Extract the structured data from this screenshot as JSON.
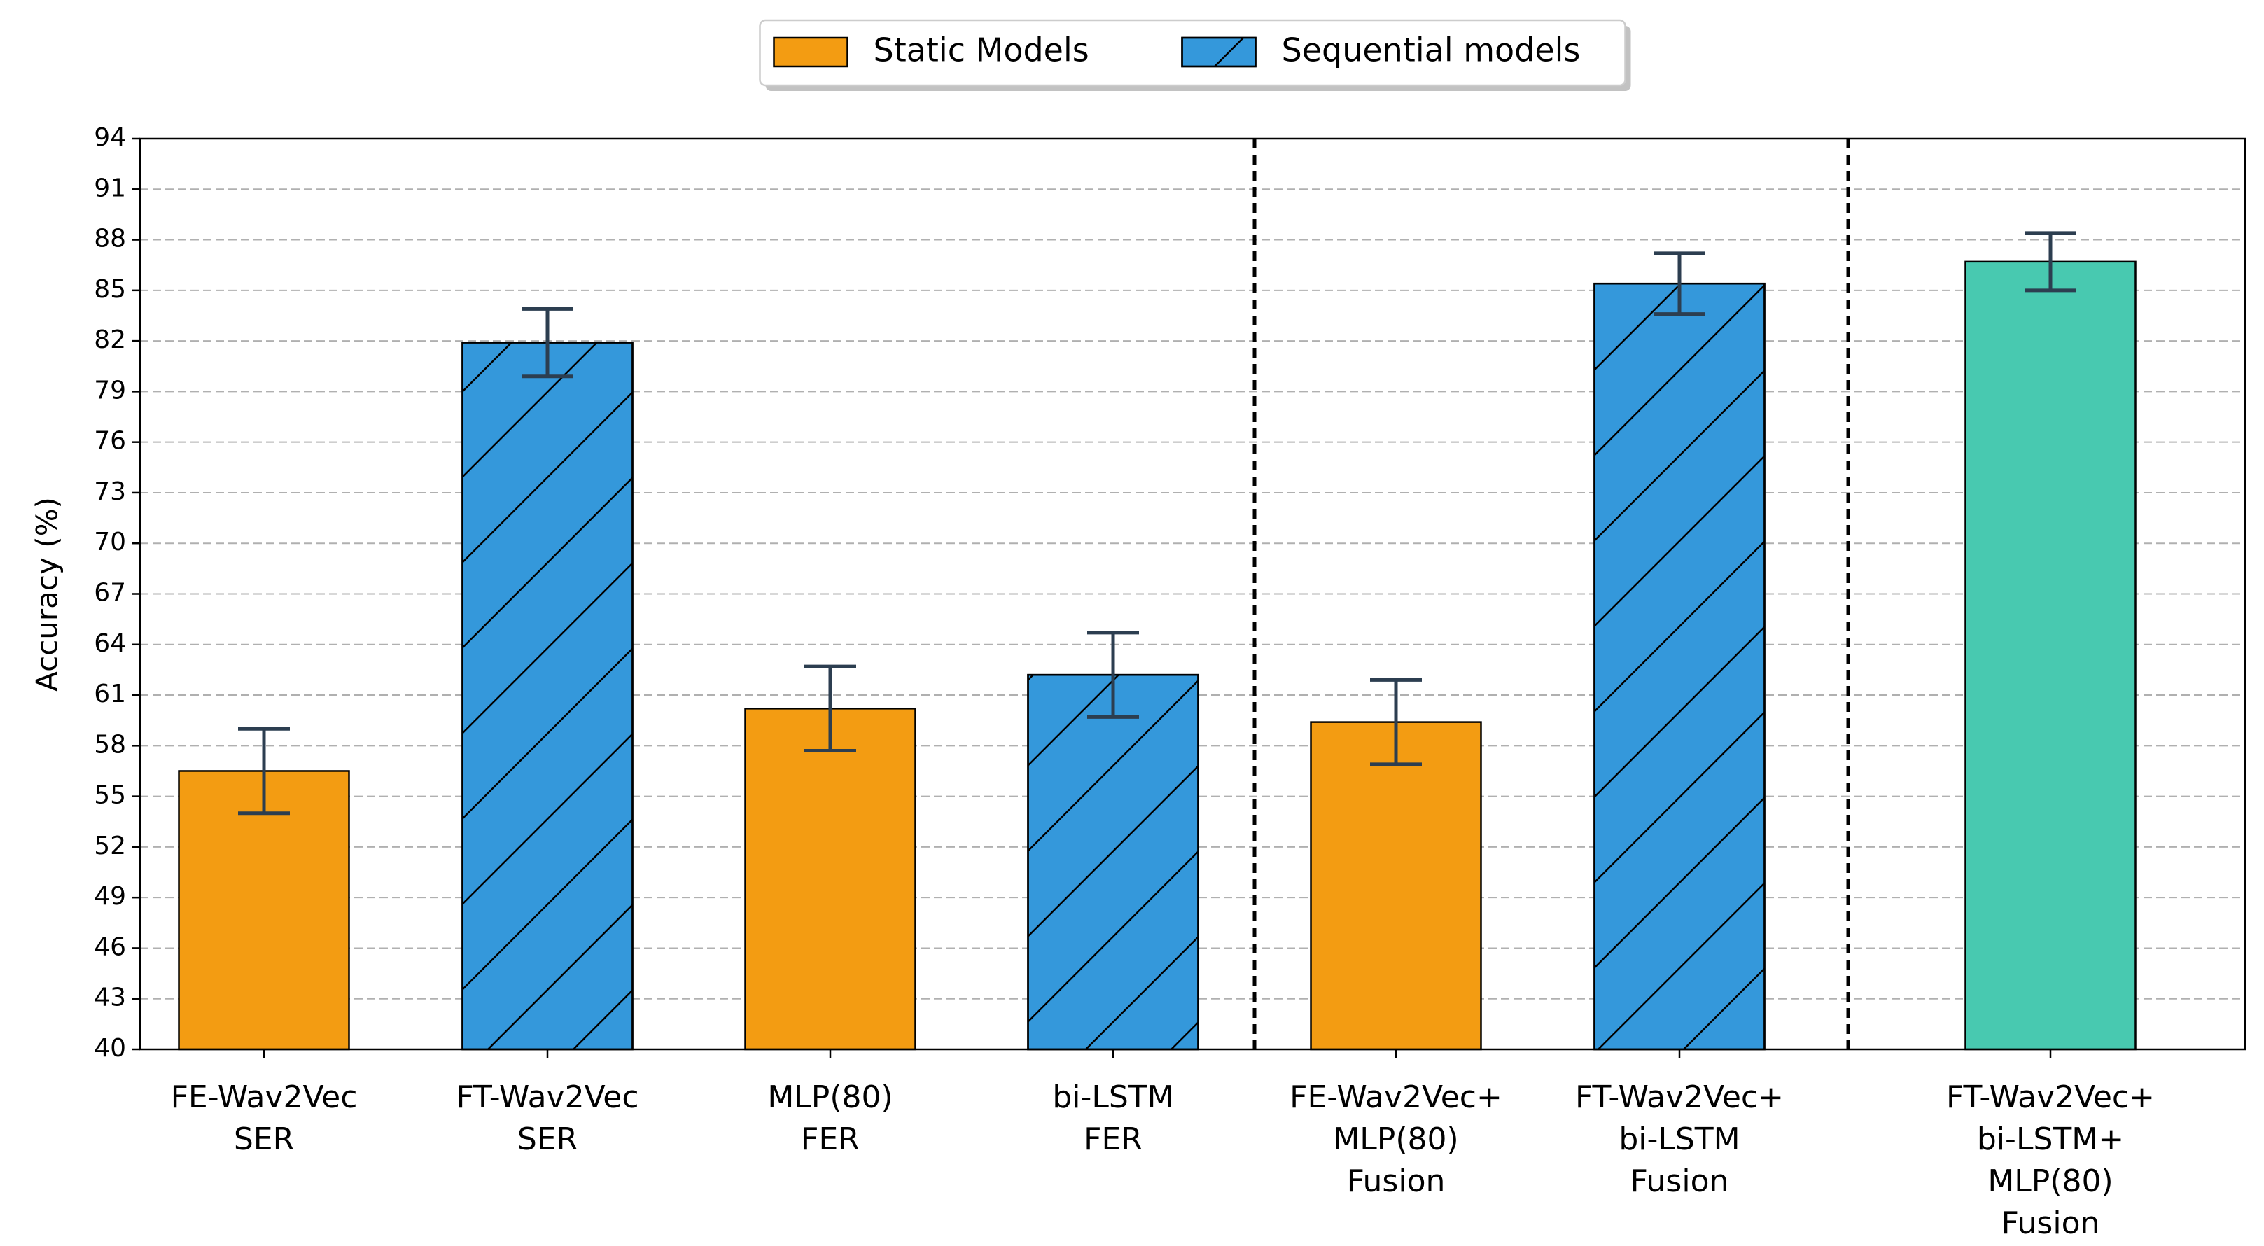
{
  "chart_data": {
    "type": "bar",
    "y_label": "Accuracy (%)",
    "categories": [
      "FE-Wav2Vec\nSER",
      "FT-Wav2Vec\nSER",
      "MLP(80)\nFER",
      "bi-LSTM\nFER",
      "FE-Wav2Vec+\nMLP(80)\nFusion",
      "FT-Wav2Vec+\nbi-LSTM\nFusion",
      "FT-Wav2Vec+\nbi-LSTM+\nMLP(80)\nFusion"
    ],
    "series": [
      {
        "name": "Static Models",
        "color": "#f39c12",
        "hatch": "none",
        "values": [
          56.5,
          null,
          60.2,
          null,
          59.4,
          null,
          null
        ],
        "errors": [
          2.5,
          null,
          2.5,
          null,
          2.5,
          null,
          null
        ]
      },
      {
        "name": "Sequential models",
        "color": "#3498db",
        "hatch": "/",
        "values": [
          null,
          81.9,
          null,
          62.2,
          null,
          85.4,
          null
        ],
        "errors": [
          null,
          2.0,
          null,
          2.5,
          null,
          1.8,
          null
        ]
      },
      {
        "color": "#48c9b0",
        "hatch": "none",
        "values": [
          null,
          null,
          null,
          null,
          null,
          null,
          86.7
        ],
        "errors": [
          null,
          null,
          null,
          null,
          null,
          null,
          1.7
        ]
      }
    ],
    "error_color": "#2c3e50",
    "ylim": [
      40,
      94
    ],
    "yticks": [
      40,
      43,
      46,
      49,
      52,
      55,
      58,
      61,
      64,
      67,
      70,
      73,
      76,
      79,
      82,
      85,
      88,
      91,
      94
    ],
    "grid": true,
    "legend": "upper center"
  }
}
